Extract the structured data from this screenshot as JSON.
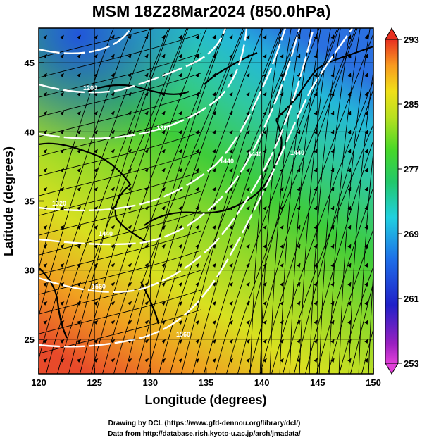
{
  "title": "MSM 18Z28Mar2024 (850.0hPa)",
  "x_axis": {
    "label": "Longitude (degrees)",
    "ticks": [
      "120",
      "125",
      "130",
      "135",
      "140",
      "145",
      "150"
    ],
    "range": [
      120,
      150
    ]
  },
  "y_axis": {
    "label": "Latitude  (degrees)",
    "ticks": [
      "25",
      "30",
      "35",
      "40",
      "45"
    ],
    "range": [
      22.5,
      47.5
    ]
  },
  "colorbar": {
    "range": [
      253,
      293
    ],
    "labels": [
      "293",
      "285",
      "277",
      "269",
      "261",
      "253"
    ],
    "label_values": [
      293,
      285,
      277,
      269,
      261,
      253
    ]
  },
  "contour_labels": [
    "1200",
    "1320",
    "1320",
    "1440",
    "1440",
    "1440",
    "1440",
    "1560",
    "1560"
  ],
  "footer": {
    "line1": "Drawing by DCL (https://www.gfd-dennou.org/library/dcl/)",
    "line2": "Data from http://database.rish.kyoto-u.ac.jp/arch/jmadata/"
  },
  "colors": {
    "warm": "#e83c30",
    "cool": "#2f6ee8",
    "mid": "#3fd02a",
    "contour": "#ffffff"
  }
}
